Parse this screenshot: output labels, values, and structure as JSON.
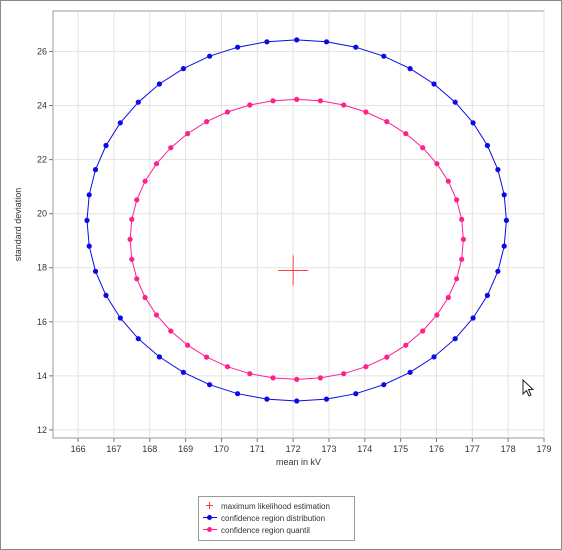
{
  "chart_data": {
    "type": "scatter",
    "xlabel": "mean in kV",
    "ylabel": "standard deviation",
    "xlim": [
      165.3,
      179
    ],
    "ylim": [
      11.7,
      27.5
    ],
    "xticks": [
      166,
      167,
      168,
      169,
      170,
      171,
      172,
      173,
      174,
      175,
      176,
      177,
      178,
      179
    ],
    "yticks": [
      12,
      14,
      16,
      18,
      20,
      22,
      24,
      26
    ],
    "grid": true,
    "legend_position": "bottom-center",
    "mle": {
      "x": 172.0,
      "y": 17.9
    },
    "series": [
      {
        "name": "maximum likelihood estimation",
        "kind": "marker",
        "color": "#ff3b3b",
        "points": [
          [
            172.0,
            17.9
          ]
        ]
      },
      {
        "name": "confidence region distribution",
        "kind": "ellipse",
        "color": "#0a0ae6",
        "ellipse": {
          "cx": 172.1,
          "cy": 19.75,
          "rx": 5.85,
          "ry": 6.68
        },
        "n_points": 44
      },
      {
        "name": "confidence region quantil",
        "kind": "ellipse",
        "color": "#ff2090",
        "ellipse": {
          "cx": 172.1,
          "cy": 19.05,
          "rx": 4.65,
          "ry": 5.18
        },
        "n_points": 44
      }
    ]
  }
}
